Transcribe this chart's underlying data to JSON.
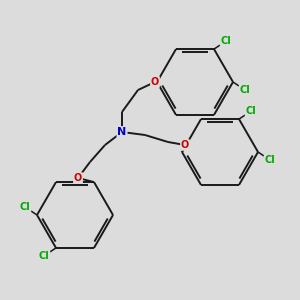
{
  "bg_color": "#dcdcdc",
  "bond_color": "#1a1a1a",
  "N_color": "#0000cc",
  "O_color": "#cc0000",
  "Cl_color": "#00aa00",
  "lw": 1.4,
  "dpi": 100,
  "figsize": [
    3.0,
    3.0
  ],
  "xlim": [
    0,
    300
  ],
  "ylim": [
    0,
    300
  ]
}
